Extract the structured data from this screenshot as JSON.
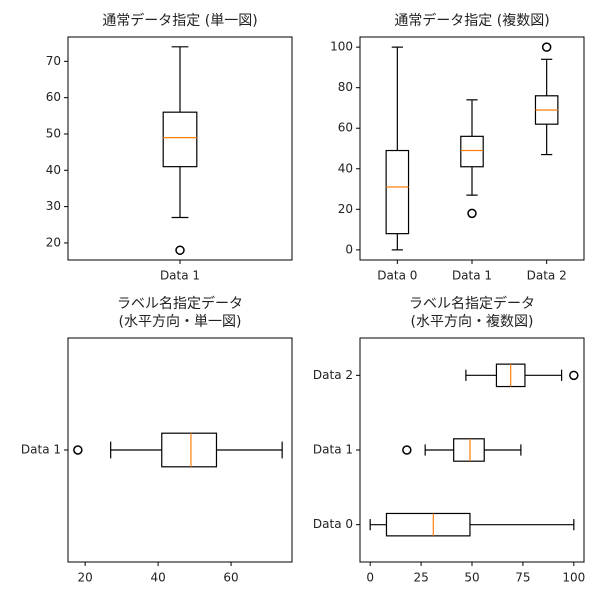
{
  "chart_data": [
    {
      "type": "boxplot",
      "orientation": "vertical",
      "title": [
        "通常データ指定 (単一図)"
      ],
      "categories": [
        "Data 1"
      ],
      "color": "#000000",
      "median_color": "#ff7f0e",
      "boxes": [
        {
          "whislo": 27,
          "q1": 41,
          "med": 49,
          "q3": 56,
          "whishi": 74,
          "fliers": [
            18
          ]
        }
      ],
      "ylim": [
        15.3,
        76.7
      ],
      "yticks": [
        20,
        30,
        40,
        50,
        60,
        70
      ]
    },
    {
      "type": "boxplot",
      "orientation": "vertical",
      "title": [
        "通常データ指定 (複数図)"
      ],
      "categories": [
        "Data 0",
        "Data 1",
        "Data 2"
      ],
      "color": "#000000",
      "median_color": "#ff7f0e",
      "boxes": [
        {
          "whislo": 0,
          "q1": 8,
          "med": 31,
          "q3": 49,
          "whishi": 100,
          "fliers": []
        },
        {
          "whislo": 27,
          "q1": 41,
          "med": 49,
          "q3": 56,
          "whishi": 74,
          "fliers": [
            18
          ]
        },
        {
          "whislo": 47,
          "q1": 62,
          "med": 69,
          "q3": 76,
          "whishi": 94,
          "fliers": [
            100
          ]
        }
      ],
      "ylim": [
        -5,
        105
      ],
      "yticks": [
        0,
        20,
        40,
        60,
        80,
        100
      ]
    },
    {
      "type": "boxplot",
      "orientation": "horizontal",
      "title": [
        "ラベル名指定データ",
        "(水平方向・単一図)"
      ],
      "categories": [
        "Data 1"
      ],
      "color": "#000000",
      "median_color": "#ff7f0e",
      "boxes": [
        {
          "whislo": 27,
          "q1": 41,
          "med": 49,
          "q3": 56,
          "whishi": 74,
          "fliers": [
            18
          ]
        }
      ],
      "xlim": [
        15.3,
        76.7
      ],
      "xticks": [
        20,
        40,
        60
      ]
    },
    {
      "type": "boxplot",
      "orientation": "horizontal",
      "title": [
        "ラベル名指定データ",
        "(水平方向・複数図)"
      ],
      "categories": [
        "Data 0",
        "Data 1",
        "Data 2"
      ],
      "color": "#000000",
      "median_color": "#ff7f0e",
      "boxes": [
        {
          "whislo": 0,
          "q1": 8,
          "med": 31,
          "q3": 49,
          "whishi": 100,
          "fliers": []
        },
        {
          "whislo": 27,
          "q1": 41,
          "med": 49,
          "q3": 56,
          "whishi": 74,
          "fliers": [
            18
          ]
        },
        {
          "whislo": 47,
          "q1": 62,
          "med": 69,
          "q3": 76,
          "whishi": 94,
          "fliers": [
            100
          ]
        }
      ],
      "xlim": [
        -5,
        105
      ],
      "xticks": [
        0,
        25,
        50,
        75,
        100
      ]
    }
  ]
}
